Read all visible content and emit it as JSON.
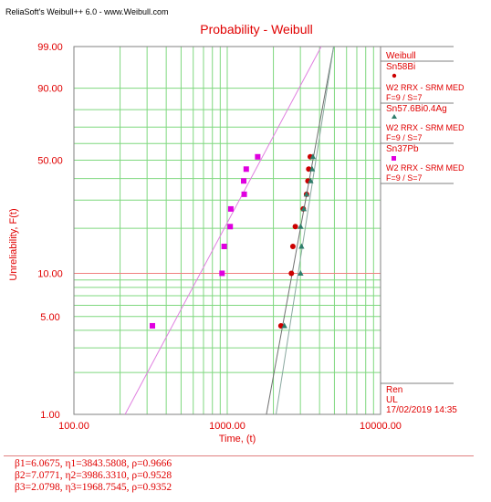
{
  "app_title": "ReliaSoft's Weibull++ 6.0 - www.Weibull.com",
  "chart_data": {
    "type": "scatter",
    "title": "Probability - Weibull",
    "xlabel": "Time, (t)",
    "ylabel": "Unreliability, F(t)",
    "xscale": "log",
    "yscale": "weibull",
    "xlim": [
      100,
      10000
    ],
    "ylim": [
      1,
      99
    ],
    "x_ticks": [
      "100.00",
      "1000.00",
      "10000.00"
    ],
    "y_ticks": [
      {
        "label": "99.00",
        "value": 99
      },
      {
        "label": "90.00",
        "value": 90
      },
      {
        "label": "50.00",
        "value": 50
      },
      {
        "label": "10.00",
        "value": 10
      },
      {
        "label": "5.00",
        "value": 5
      },
      {
        "label": "1.00",
        "value": 1
      }
    ],
    "grid": true,
    "legend": {
      "header": "Weibull",
      "entries": [
        {
          "name": "Sn58Bi",
          "line1": "W2 RRX - SRM MED",
          "line2": "F=9 / S=7",
          "marker": "circle",
          "color": "#cc0000"
        },
        {
          "name": "Sn57.6Bi0.4Ag",
          "line1": "W2 RRX - SRM MED",
          "line2": "F=9 / S=7",
          "marker": "triangle",
          "color": "#2e7d6b"
        },
        {
          "name": "Sn37Pb",
          "line1": "W2 RRX - SRM MED",
          "line2": "F=9 / S=7",
          "marker": "square",
          "color": "#e000e0"
        }
      ]
    },
    "series": [
      {
        "name": "Sn58Bi",
        "marker": "circle",
        "color": "#cc0000",
        "beta": 6.0675,
        "eta": 3843.5808,
        "line_color": "#707070",
        "points": [
          {
            "x": 2240,
            "y": 4.3
          },
          {
            "x": 2620,
            "y": 10.0
          },
          {
            "x": 2680,
            "y": 15.2
          },
          {
            "x": 2780,
            "y": 20.5
          },
          {
            "x": 3130,
            "y": 26.5
          },
          {
            "x": 3290,
            "y": 32.5
          },
          {
            "x": 3360,
            "y": 38.8
          },
          {
            "x": 3400,
            "y": 45.0
          },
          {
            "x": 3480,
            "y": 52.0
          }
        ]
      },
      {
        "name": "Sn57.6Bi0.4Ag",
        "marker": "triangle",
        "color": "#2e7d6b",
        "beta": 7.0771,
        "eta": 3986.331,
        "line_color": "#8aa8a0",
        "points": [
          {
            "x": 2360,
            "y": 4.3
          },
          {
            "x": 3010,
            "y": 10.0
          },
          {
            "x": 3050,
            "y": 15.2
          },
          {
            "x": 3010,
            "y": 20.5
          },
          {
            "x": 3160,
            "y": 26.5
          },
          {
            "x": 3290,
            "y": 32.5
          },
          {
            "x": 3500,
            "y": 38.8
          },
          {
            "x": 3580,
            "y": 45.0
          },
          {
            "x": 3620,
            "y": 52.0
          }
        ]
      },
      {
        "name": "Sn37Pb",
        "marker": "square",
        "color": "#e000e0",
        "beta": 2.0798,
        "eta": 1968.7545,
        "line_color": "#e080e0",
        "points": [
          {
            "x": 325,
            "y": 4.3
          },
          {
            "x": 925,
            "y": 10.0
          },
          {
            "x": 955,
            "y": 15.2
          },
          {
            "x": 1045,
            "y": 20.5
          },
          {
            "x": 1055,
            "y": 26.5
          },
          {
            "x": 1290,
            "y": 32.5
          },
          {
            "x": 1280,
            "y": 38.8
          },
          {
            "x": 1330,
            "y": 45.0
          },
          {
            "x": 1580,
            "y": 52.0
          }
        ]
      }
    ]
  },
  "info": {
    "user": "Ren",
    "company": "UL",
    "datetime": "17/02/2019 14:35"
  },
  "footer": {
    "line1": "β1=6.0675, η1=3843.5808, ρ=0.9666",
    "line2": "β2=7.0771, η2=3986.3310, ρ=0.9528",
    "line3": "β3=2.0798, η3=1968.7545, ρ=0.9352"
  }
}
